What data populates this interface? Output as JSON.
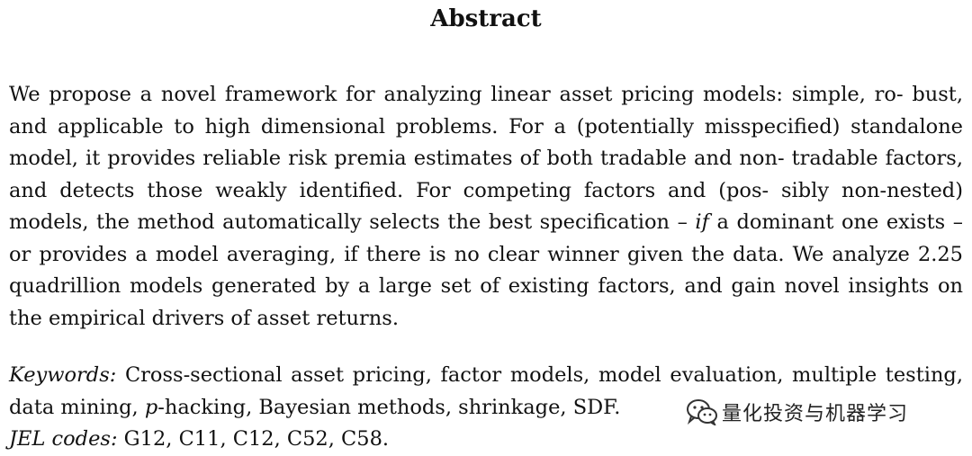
{
  "title": "Abstract",
  "abstract": {
    "line1": "We propose a novel framework for analyzing linear asset pricing models: simple, ro-",
    "line2": "bust, and applicable to high dimensional problems. For a (potentially misspecified)",
    "line3": "standalone model, it provides reliable risk premia estimates of both tradable and non-",
    "line4": "tradable factors, and detects those weakly identified. For competing factors and (pos-",
    "line5": "sibly non-nested) models, the method automatically selects the best specification –",
    "line6_italic": "if",
    "line6_rest": " a dominant one exists – or provides a model averaging, if there is no clear winner",
    "line7": "given the data. We analyze 2.25 quadrillion models generated by a large set of existing",
    "line8": "factors, and gain novel insights on the empirical drivers of asset returns."
  },
  "keywords": {
    "label": "Keywords:",
    "part1": " Cross-sectional asset pricing, factor models, model evaluation, multiple testing, data mining, ",
    "p_italic": "p",
    "part2": "-hacking, Bayesian methods, shrinkage, SDF."
  },
  "jel": {
    "label": "JEL codes:",
    "codes": " G12, C11, C12, C52, C58."
  },
  "watermark": {
    "icon": "wechat-icon",
    "text": "量化投资与机器学习"
  }
}
